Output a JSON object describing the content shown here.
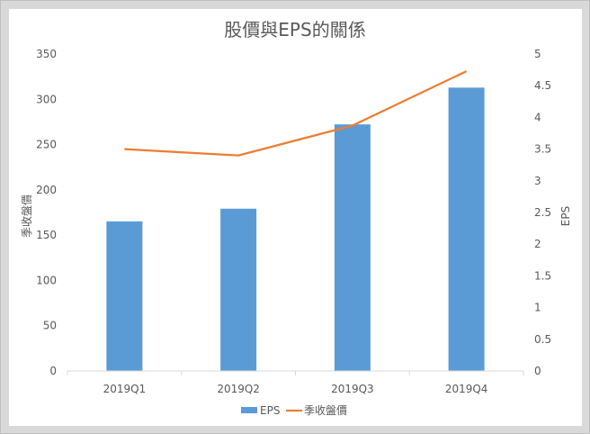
{
  "chart_data": {
    "type": "bar",
    "title": "股價與EPS的關係",
    "categories": [
      "2019Q1",
      "2019Q2",
      "2019Q3",
      "2019Q4"
    ],
    "series": [
      {
        "name": "EPS",
        "type": "bar",
        "axis": "right",
        "color": "#5b9bd5",
        "values": [
          2.36,
          2.56,
          3.89,
          4.47
        ]
      },
      {
        "name": "季收盤價",
        "type": "line",
        "axis": "left",
        "color": "#ed7d31",
        "values": [
          245,
          238,
          271,
          331
        ]
      }
    ],
    "y_left": {
      "label": "季收盤價",
      "ylim": [
        0,
        350
      ],
      "ticks": [
        "0",
        "50",
        "100",
        "150",
        "200",
        "250",
        "300",
        "350"
      ]
    },
    "y_right": {
      "label": "EPS",
      "ylim": [
        0,
        5
      ],
      "ticks": [
        "0",
        "0.5",
        "1",
        "1.5",
        "2",
        "2.5",
        "3",
        "3.5",
        "4",
        "4.5",
        "5"
      ]
    },
    "grid": false,
    "legend_position": "bottom"
  }
}
